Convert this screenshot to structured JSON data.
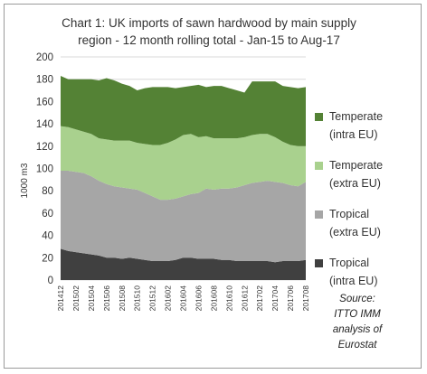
{
  "chart_data": {
    "type": "area",
    "stacked": true,
    "title_lines": [
      "Chart 1: UK imports of sawn hardwood by main supply",
      "region - 12 month rolling total - Jan-15 to Aug-17"
    ],
    "ylabel": "1000 m3",
    "xlabel": "",
    "ylim": [
      0,
      200
    ],
    "yticks": [
      0,
      20,
      40,
      60,
      80,
      100,
      120,
      140,
      160,
      180,
      200
    ],
    "grid": true,
    "legend_position": "right",
    "x": [
      "201412",
      "201501",
      "201502",
      "201503",
      "201504",
      "201505",
      "201506",
      "201507",
      "201508",
      "201509",
      "201510",
      "201511",
      "201512",
      "201601",
      "201602",
      "201603",
      "201604",
      "201605",
      "201606",
      "201607",
      "201608",
      "201609",
      "201610",
      "201611",
      "201612",
      "201701",
      "201702",
      "201703",
      "201704",
      "201705",
      "201706",
      "201707",
      "201708"
    ],
    "xtick_labels": [
      "201412",
      "201502",
      "201504",
      "201506",
      "201508",
      "201510",
      "201512",
      "201602",
      "201604",
      "201606",
      "201608",
      "201610",
      "201612",
      "201702",
      "201704",
      "201706",
      "201708"
    ],
    "series": [
      {
        "name": "Tropical (intra EU)",
        "legend_lines": [
          "Tropical",
          "(intra EU)"
        ],
        "color": "#404040",
        "values": [
          28,
          26,
          25,
          24,
          23,
          22,
          20,
          20,
          19,
          20,
          19,
          18,
          17,
          17,
          17,
          18,
          20,
          20,
          19,
          19,
          19,
          18,
          18,
          17,
          17,
          17,
          17,
          17,
          16,
          17,
          17,
          17,
          18
        ]
      },
      {
        "name": "Tropical (extra EU)",
        "legend_lines": [
          "Tropical",
          "(extra EU)"
        ],
        "color": "#a6a6a6",
        "values": [
          70,
          72,
          72,
          72,
          70,
          67,
          66,
          64,
          64,
          62,
          62,
          60,
          58,
          55,
          55,
          55,
          55,
          57,
          59,
          63,
          62,
          64,
          64,
          66,
          68,
          70,
          71,
          72,
          72,
          70,
          68,
          67,
          70
        ]
      },
      {
        "name": "Temperate (extra EU)",
        "legend_lines": [
          "Temperate",
          "(extra EU)"
        ],
        "color": "#a9d18e",
        "values": [
          40,
          39,
          38,
          37,
          38,
          38,
          40,
          41,
          42,
          43,
          42,
          44,
          46,
          49,
          51,
          53,
          55,
          54,
          50,
          47,
          46,
          45,
          45,
          44,
          43,
          43,
          43,
          42,
          40,
          37,
          36,
          36,
          32
        ]
      },
      {
        "name": "Temperate (intra EU)",
        "legend_lines": [
          "Temperate",
          "(intra EU)"
        ],
        "color": "#548235",
        "values": [
          45,
          43,
          45,
          47,
          49,
          52,
          55,
          54,
          51,
          49,
          47,
          50,
          52,
          52,
          50,
          46,
          43,
          43,
          47,
          44,
          47,
          47,
          45,
          43,
          40,
          48,
          47,
          47,
          50,
          50,
          52,
          52,
          53
        ]
      }
    ],
    "source_lines": [
      "Source:",
      "ITTO IMM",
      "analysis of",
      "Eurostat"
    ]
  }
}
